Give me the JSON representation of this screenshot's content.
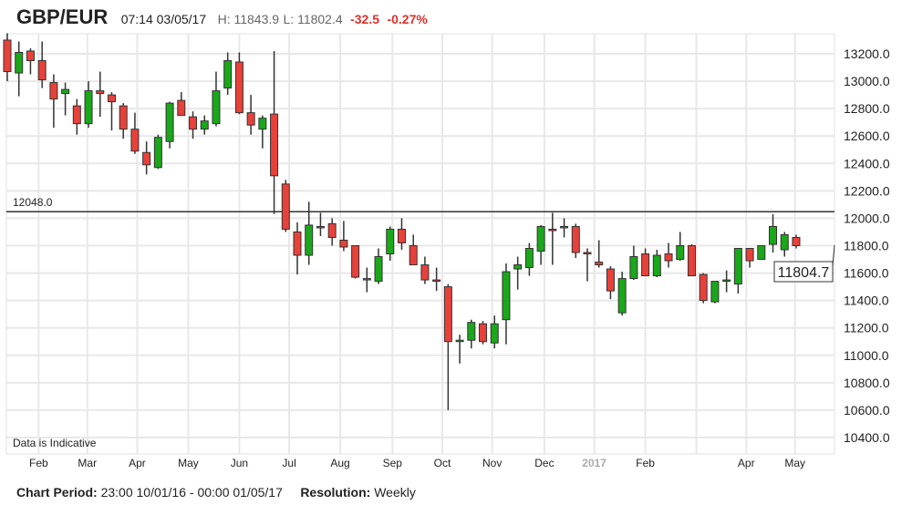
{
  "header": {
    "symbol": "GBP/EUR",
    "time": "07:14 03/05/17",
    "high": "H: 11843.9",
    "low": "L: 11802.4",
    "change": "-32.5",
    "change_pct": "-0.27%"
  },
  "footer": {
    "period_label": "Chart Period:",
    "period_value": "23:00 10/01/16 - 00:00 01/05/17",
    "resolution_label": "Resolution:",
    "resolution_value": "Weekly"
  },
  "chart_data": {
    "type": "candlestick",
    "title": "GBP/EUR",
    "ylim": [
      10320,
      13420
    ],
    "yticks": [
      10400,
      10600,
      10800,
      11000,
      11200,
      11400,
      11600,
      11800,
      12000,
      12200,
      12400,
      12600,
      12800,
      13000,
      13200
    ],
    "ytick_labels": [
      "10400.0",
      "10600.0",
      "10800.0",
      "11000.0",
      "11200.0",
      "11400.0",
      "11600.0",
      "11800.0",
      "12000.0",
      "12200.0",
      "12400.0",
      "12600.0",
      "12800.0",
      "13000.0",
      "13200.0"
    ],
    "xticks": [
      {
        "label": "Feb",
        "at_index": 2.7
      },
      {
        "label": "Mar",
        "at_index": 6.9
      },
      {
        "label": "Apr",
        "at_index": 11.2
      },
      {
        "label": "May",
        "at_index": 15.6
      },
      {
        "label": "Jun",
        "at_index": 20.0
      },
      {
        "label": "Jul",
        "at_index": 24.3
      },
      {
        "label": "Aug",
        "at_index": 28.7
      },
      {
        "label": "Sep",
        "at_index": 33.2
      },
      {
        "label": "Oct",
        "at_index": 37.5
      },
      {
        "label": "Nov",
        "at_index": 41.8
      },
      {
        "label": "Dec",
        "at_index": 46.3
      },
      {
        "label": "2017",
        "at_index": 50.6,
        "muted": true
      },
      {
        "label": "Feb",
        "at_index": 55.0
      },
      {
        "label": "",
        "at_index": 59.4
      },
      {
        "label": "Apr",
        "at_index": 63.7
      },
      {
        "label": "May",
        "at_index": 67.9
      }
    ],
    "reference_line": {
      "value": 12048.0,
      "label": "12048.0"
    },
    "last_price": {
      "value": 11804.7,
      "label": "11804.7"
    },
    "annotation": "Data is Indicative",
    "colors": {
      "up": "#1aa81a",
      "down": "#e8413a",
      "outline": "#333333"
    },
    "ohlc": [
      [
        13300,
        13350,
        13000,
        13070
      ],
      [
        13060,
        13290,
        12890,
        13210
      ],
      [
        13220,
        13240,
        13050,
        13150
      ],
      [
        13150,
        13290,
        12950,
        13010
      ],
      [
        12990,
        13050,
        12660,
        12870
      ],
      [
        12910,
        12990,
        12750,
        12940
      ],
      [
        12820,
        12870,
        12610,
        12690
      ],
      [
        12690,
        13000,
        12660,
        12930
      ],
      [
        12930,
        13070,
        12740,
        12910
      ],
      [
        12900,
        12920,
        12640,
        12850
      ],
      [
        12820,
        12840,
        12580,
        12650
      ],
      [
        12650,
        12770,
        12470,
        12490
      ],
      [
        12480,
        12560,
        12320,
        12390
      ],
      [
        12370,
        12610,
        12360,
        12590
      ],
      [
        12560,
        12850,
        12510,
        12840
      ],
      [
        12860,
        12920,
        12750,
        12750
      ],
      [
        12740,
        12780,
        12580,
        12650
      ],
      [
        12650,
        12750,
        12610,
        12710
      ],
      [
        12690,
        13070,
        12670,
        12930
      ],
      [
        12950,
        13210,
        12900,
        13150
      ],
      [
        13140,
        13210,
        12760,
        12770
      ],
      [
        12770,
        12900,
        12610,
        12680
      ],
      [
        12650,
        12750,
        12510,
        12730
      ],
      [
        12760,
        13220,
        12030,
        12310
      ],
      [
        12250,
        12280,
        11900,
        11920
      ],
      [
        11900,
        11970,
        11590,
        11730
      ],
      [
        11730,
        12120,
        11660,
        11950
      ],
      [
        11940,
        12040,
        11870,
        11930
      ],
      [
        11960,
        12000,
        11800,
        11860
      ],
      [
        11840,
        11980,
        11760,
        11790
      ],
      [
        11800,
        11800,
        11560,
        11570
      ],
      [
        11560,
        11640,
        11460,
        11550
      ],
      [
        11540,
        11780,
        11520,
        11720
      ],
      [
        11740,
        11940,
        11690,
        11920
      ],
      [
        11920,
        12000,
        11770,
        11820
      ],
      [
        11800,
        11880,
        11660,
        11660
      ],
      [
        11660,
        11720,
        11520,
        11550
      ],
      [
        11550,
        11640,
        11470,
        11540
      ],
      [
        11500,
        11520,
        10600,
        11100
      ],
      [
        11100,
        11150,
        10940,
        11110
      ],
      [
        11110,
        11260,
        11050,
        11240
      ],
      [
        11230,
        11250,
        11080,
        11100
      ],
      [
        11090,
        11290,
        11050,
        11230
      ],
      [
        11260,
        11670,
        11080,
        11610
      ],
      [
        11630,
        11720,
        11480,
        11660
      ],
      [
        11640,
        11820,
        11580,
        11780
      ],
      [
        11760,
        11950,
        11660,
        11940
      ],
      [
        11920,
        12040,
        11660,
        11910
      ],
      [
        11940,
        12000,
        11860,
        11940
      ],
      [
        11940,
        11960,
        11710,
        11750
      ],
      [
        11750,
        11780,
        11540,
        11740
      ],
      [
        11680,
        11840,
        11640,
        11660
      ],
      [
        11630,
        11650,
        11410,
        11470
      ],
      [
        11310,
        11610,
        11290,
        11560
      ],
      [
        11560,
        11800,
        11550,
        11720
      ],
      [
        11740,
        11780,
        11580,
        11580
      ],
      [
        11580,
        11770,
        11570,
        11730
      ],
      [
        11740,
        11820,
        11640,
        11690
      ],
      [
        11700,
        11900,
        11690,
        11800
      ],
      [
        11800,
        11810,
        11580,
        11580
      ],
      [
        11590,
        11600,
        11380,
        11400
      ],
      [
        11390,
        11540,
        11380,
        11540
      ],
      [
        11540,
        11620,
        11460,
        11550
      ],
      [
        11520,
        11780,
        11450,
        11780
      ],
      [
        11780,
        11780,
        11640,
        11690
      ],
      [
        11700,
        11800,
        11700,
        11800
      ],
      [
        11810,
        12030,
        11750,
        11940
      ],
      [
        11770,
        11900,
        11720,
        11880
      ],
      [
        11860,
        11880,
        11780,
        11800
      ]
    ]
  }
}
